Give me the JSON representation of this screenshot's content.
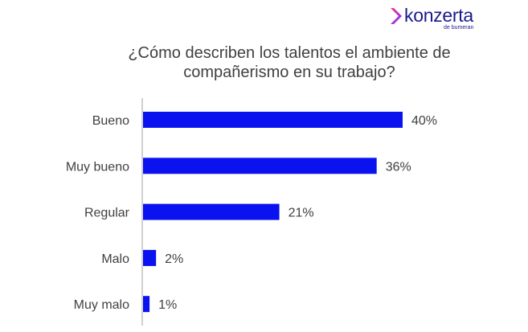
{
  "logo": {
    "name": "konzerta",
    "sub": "de bumeran"
  },
  "colors": {
    "bar": "#0a12f0",
    "axis": "#bfbfbf",
    "text": "#404040",
    "brand": "#1a1a8c"
  },
  "chart_data": {
    "type": "bar",
    "orientation": "horizontal",
    "title": "¿Cómo describen los talentos el ambiente de compañerismo en su trabajo?",
    "title_lines": [
      "¿Cómo describen los talentos el ambiente de",
      "compañerismo en su trabajo?"
    ],
    "categories": [
      "Bueno",
      "Muy bueno",
      "Regular",
      "Malo",
      "Muy malo"
    ],
    "values": [
      40,
      36,
      21,
      2,
      1
    ],
    "value_labels": [
      "40%",
      "36%",
      "21%",
      "2%",
      "1%"
    ],
    "xlim": [
      0,
      40
    ],
    "grid": false,
    "legend": "none"
  }
}
